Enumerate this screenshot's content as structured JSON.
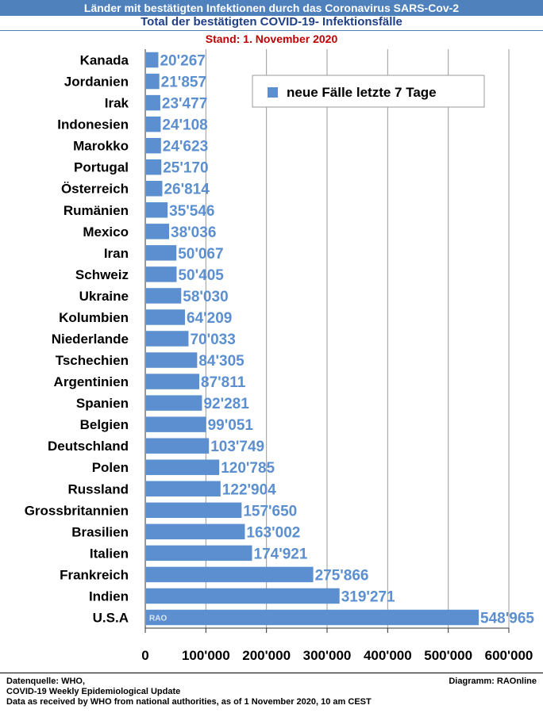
{
  "header": {
    "banner": "Länder mit bestätigten Infektionen durch das Coronavirus SARS-Cov-2",
    "subtitle": "Total der bestätigten COVID-19- Infektionsfälle",
    "date": "Stand: 1. November 2020"
  },
  "chart_data": {
    "type": "bar",
    "orientation": "horizontal",
    "categories": [
      "Kanada",
      "Jordanien",
      "Irak",
      "Indonesien",
      "Marokko",
      "Portugal",
      "Österreich",
      "Rumänien",
      "Mexico",
      "Iran",
      "Schweiz",
      "Ukraine",
      "Kolumbien",
      "Niederlande",
      "Tschechien",
      "Argentinien",
      "Spanien",
      "Belgien",
      "Deutschland",
      "Polen",
      "Russland",
      "Grossbritannien",
      "Brasilien",
      "Italien",
      "Frankreich",
      "Indien",
      "U.S.A"
    ],
    "series": [
      {
        "name": "neue Fälle letzte 7 Tage",
        "values": [
          20267,
          21857,
          23477,
          24108,
          24623,
          25170,
          26814,
          35546,
          38036,
          50067,
          50405,
          58030,
          64209,
          70033,
          84305,
          87811,
          92281,
          99051,
          103749,
          120785,
          122904,
          157650,
          163002,
          174921,
          275866,
          319271,
          548965
        ]
      }
    ],
    "data_labels": [
      "20'267",
      "21'857",
      "23'477",
      "24'108",
      "24'623",
      "25'170",
      "26'814",
      "35'546",
      "38'036",
      "50'067",
      "50'405",
      "58'030",
      "64'209",
      "70'033",
      "84'305",
      "87'811",
      "92'281",
      "99'051",
      "103'749",
      "120'785",
      "122'904",
      "157'650",
      "163'002",
      "174'921",
      "275'866",
      "319'271",
      "548'965"
    ],
    "xlim": [
      0,
      600000
    ],
    "xticks": [
      0,
      100000,
      200000,
      300000,
      400000,
      500000,
      600000
    ],
    "xtick_labels": [
      "0",
      "100'000",
      "200'000",
      "300'000",
      "400'000",
      "500'000",
      "600'000"
    ],
    "grid": "vertical",
    "legend": "top-right",
    "bar_color": "#5b8fcf",
    "label_color": "#5b8fcf",
    "watermark": "RAO"
  },
  "footer": {
    "source_line1": "Datenquelle: WHO,",
    "source_line2": "COVID-19 Weekly Epidemiological Update",
    "source_line3": "Data as received by WHO from national authorities, as of 1 November 2020, 10 am CEST",
    "credit": "Diagramm: RAOnline"
  }
}
